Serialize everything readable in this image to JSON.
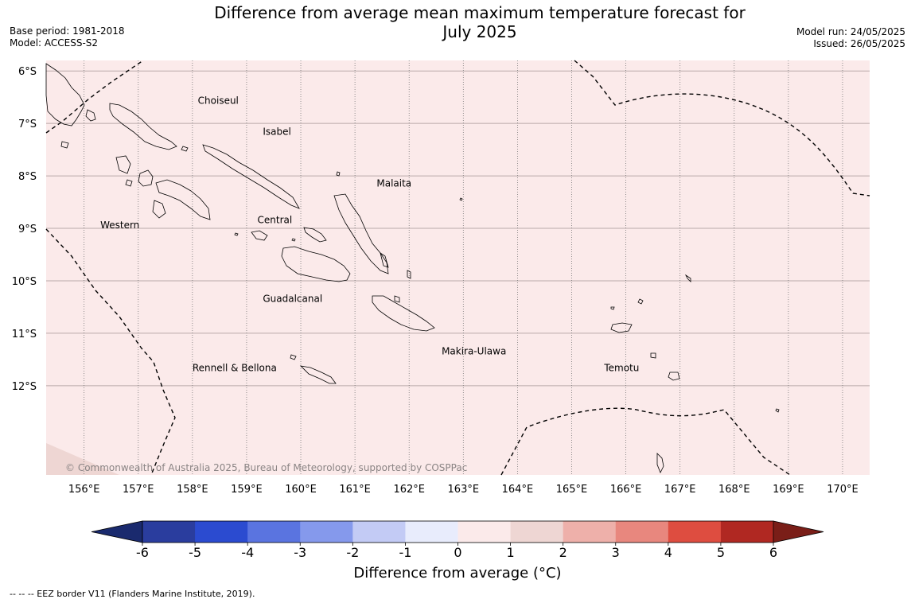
{
  "title_line1": "Difference from average mean maximum temperature forecast for",
  "title_line2": "July 2025",
  "base_period": "Base period: 1981-2018",
  "model": "Model: ACCESS-S2",
  "model_run": "Model run: 24/05/2025",
  "issued": "Issued: 26/05/2025",
  "lat_labels": [
    "6°S",
    "7°S",
    "8°S",
    "9°S",
    "10°S",
    "11°S",
    "12°S"
  ],
  "lon_labels": [
    "156°E",
    "157°E",
    "158°E",
    "159°E",
    "160°E",
    "161°E",
    "162°E",
    "163°E",
    "164°E",
    "165°E",
    "166°E",
    "167°E",
    "168°E",
    "169°E",
    "170°E"
  ],
  "province_labels": [
    {
      "name": "Choiseul",
      "lon": 158.1,
      "lat": -6.63
    },
    {
      "name": "Isabel",
      "lon": 159.3,
      "lat": -7.22
    },
    {
      "name": "Malaita",
      "lon": 161.4,
      "lat": -8.2
    },
    {
      "name": "Western",
      "lon": 156.3,
      "lat": -9.0
    },
    {
      "name": "Central",
      "lon": 159.2,
      "lat": -8.9
    },
    {
      "name": "Guadalcanal",
      "lon": 159.3,
      "lat": -10.4
    },
    {
      "name": "Makira-Ulawa",
      "lon": 162.6,
      "lat": -11.4
    },
    {
      "name": "Temotu",
      "lon": 165.6,
      "lat": -11.72
    },
    {
      "name": "Rennell & Bellona",
      "lon": 158.0,
      "lat": -11.72
    }
  ],
  "copyright": "© Commonwealth of Australia 2025, Bureau of Meteorology, supported by COSPPac",
  "colorbar": {
    "ticks": [
      "-6",
      "-5",
      "-4",
      "-3",
      "-2",
      "-1",
      "0",
      "1",
      "2",
      "3",
      "4",
      "5",
      "6"
    ],
    "colors": [
      "#2a3d9e",
      "#2b4bd0",
      "#5a74e0",
      "#8599ec",
      "#c3cbf5",
      "#e8ecfc",
      "#fbeaea",
      "#eed6d3",
      "#eeb0aa",
      "#e8877e",
      "#de4d40",
      "#b02822"
    ],
    "under_color": "#1a2a6e",
    "over_color": "#7a1e18",
    "label": "Difference from average (°C)"
  },
  "footnote": "--  --  -- EEZ border V11 (Flanders Marine Institute, 2019).",
  "map": {
    "lon_range": [
      155.3,
      170.5
    ],
    "lat_range": [
      -13.7,
      -5.8
    ],
    "background_color": "#fbeaea",
    "corner_color": "#eed6d3"
  }
}
